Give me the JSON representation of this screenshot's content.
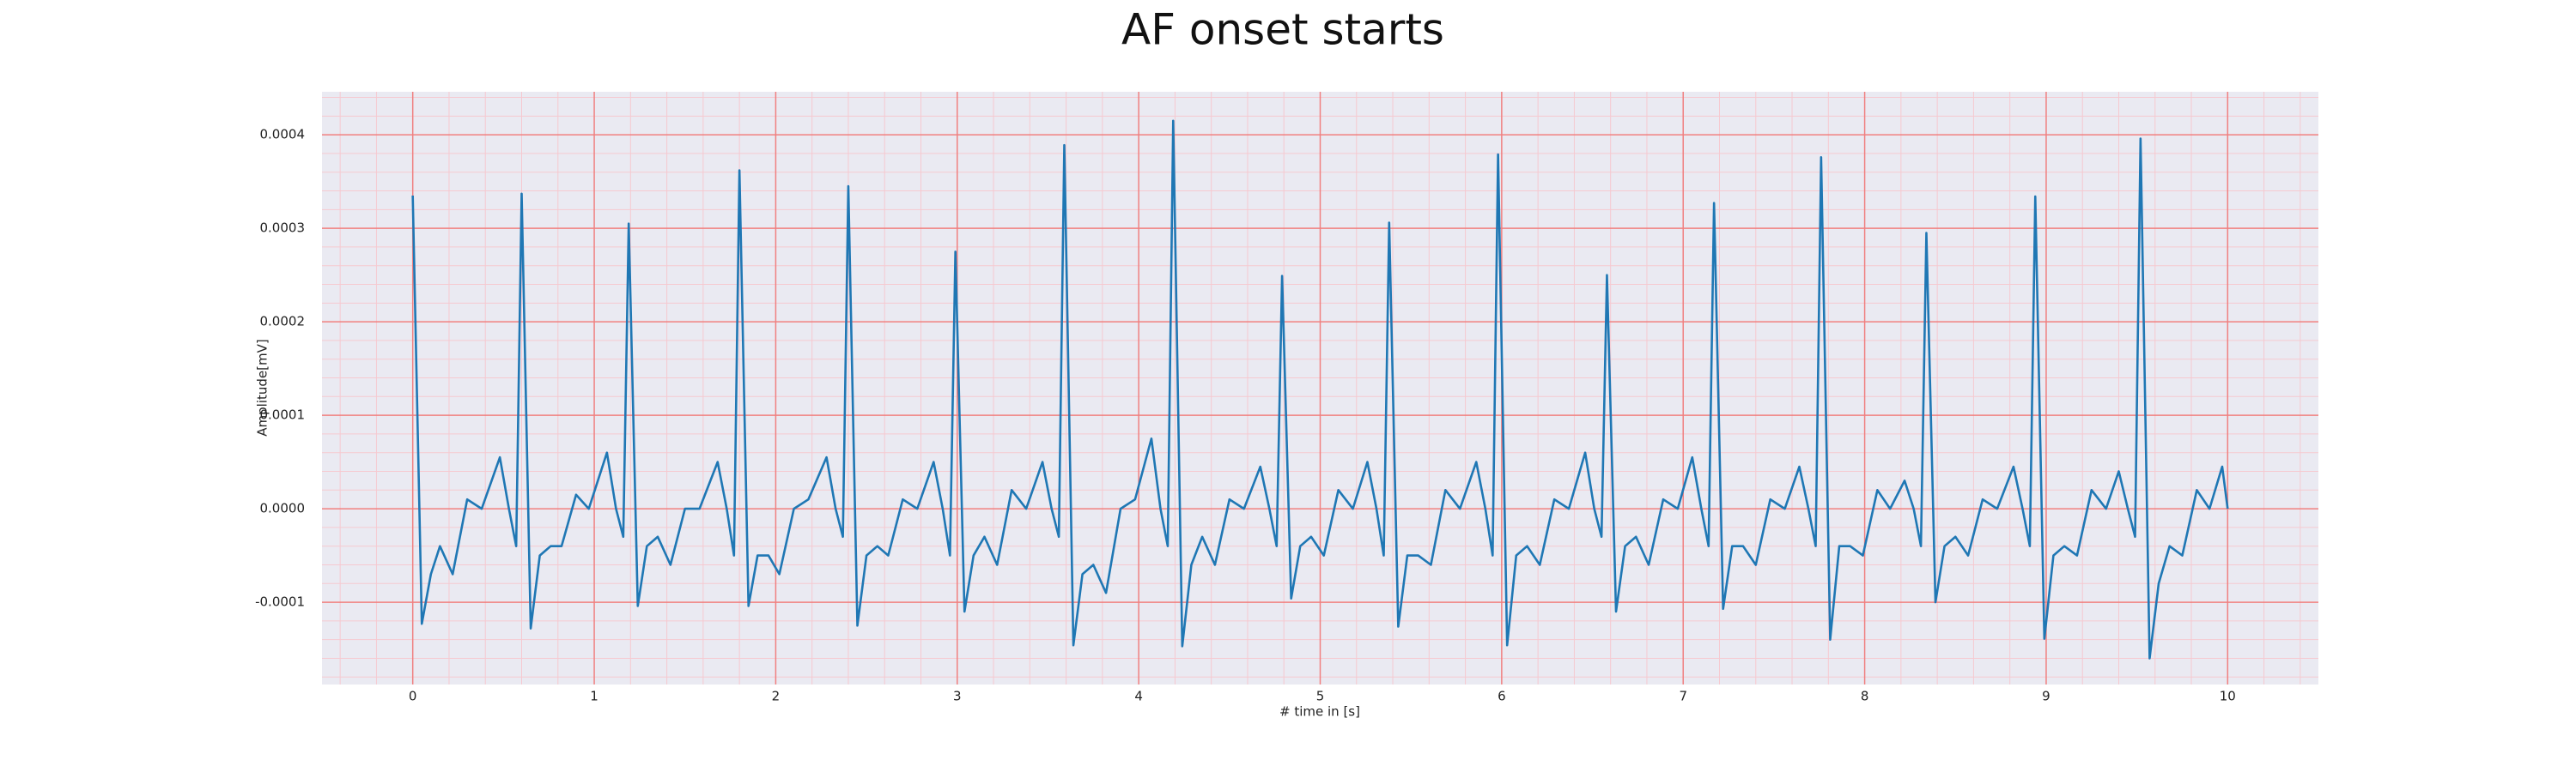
{
  "chart_data": {
    "type": "line",
    "title": "AF onset starts",
    "x_label": "# time in [s]",
    "y_label": "Amplitude[mV]",
    "color": "#1f77b4",
    "grid": true,
    "minor_grid": true,
    "grid_color": "#f08080",
    "minor_grid_color": "#f6c9d0",
    "background": "#eaeaf2",
    "xlim": [
      -0.5,
      10.5
    ],
    "ylim": [
      -0.000188,
      0.000446
    ],
    "xticks": [
      0,
      1,
      2,
      3,
      4,
      5,
      6,
      7,
      8,
      9,
      10
    ],
    "yticks": [
      -0.0001,
      {
        "value": 0,
        "label": "0.0000"
      },
      0.0001,
      0.0002,
      0.0003,
      0.0004
    ],
    "x": [
      0.0,
      0.05,
      0.1,
      0.15,
      0.22,
      0.3,
      0.38,
      0.48,
      0.53,
      0.57,
      0.6,
      0.65,
      0.7,
      0.76,
      0.82,
      0.9,
      0.97,
      1.07,
      1.12,
      1.16,
      1.19,
      1.24,
      1.29,
      1.35,
      1.42,
      1.5,
      1.58,
      1.68,
      1.73,
      1.77,
      1.8,
      1.85,
      1.9,
      1.96,
      2.02,
      2.1,
      2.18,
      2.28,
      2.33,
      2.37,
      2.4,
      2.45,
      2.5,
      2.56,
      2.62,
      2.7,
      2.78,
      2.87,
      2.92,
      2.96,
      2.99,
      3.04,
      3.09,
      3.15,
      3.22,
      3.3,
      3.38,
      3.47,
      3.52,
      3.56,
      3.59,
      3.64,
      3.69,
      3.75,
      3.82,
      3.9,
      3.98,
      4.07,
      4.12,
      4.16,
      4.19,
      4.24,
      4.29,
      4.35,
      4.42,
      4.5,
      4.58,
      4.67,
      4.72,
      4.76,
      4.79,
      4.84,
      4.89,
      4.95,
      5.02,
      5.1,
      5.18,
      5.26,
      5.31,
      5.35,
      5.38,
      5.43,
      5.48,
      5.54,
      5.61,
      5.69,
      5.77,
      5.86,
      5.91,
      5.95,
      5.98,
      6.03,
      6.08,
      6.14,
      6.21,
      6.29,
      6.37,
      6.46,
      6.51,
      6.55,
      6.58,
      6.63,
      6.68,
      6.74,
      6.81,
      6.89,
      6.97,
      7.05,
      7.1,
      7.14,
      7.17,
      7.22,
      7.27,
      7.33,
      7.4,
      7.48,
      7.56,
      7.64,
      7.69,
      7.73,
      7.76,
      7.81,
      7.86,
      7.92,
      7.99,
      8.07,
      8.14,
      8.22,
      8.27,
      8.31,
      8.34,
      8.39,
      8.44,
      8.5,
      8.57,
      8.65,
      8.73,
      8.82,
      8.87,
      8.91,
      8.94,
      8.99,
      9.04,
      9.1,
      9.17,
      9.25,
      9.33,
      9.4,
      9.45,
      9.49,
      9.52,
      9.57,
      9.62,
      9.68,
      9.75,
      9.83,
      9.9,
      9.97,
      10.0
    ],
    "values": [
      0.000335,
      -0.000123,
      -7e-05,
      -4e-05,
      -7e-05,
      1e-05,
      0.0,
      5.5e-05,
      0.0,
      -4e-05,
      0.000337,
      -0.000128,
      -5e-05,
      -4e-05,
      -4e-05,
      1.5e-05,
      0.0,
      6e-05,
      0.0,
      -3e-05,
      0.000305,
      -0.000104,
      -4e-05,
      -3e-05,
      -6e-05,
      0.0,
      0.0,
      5e-05,
      0.0,
      -5e-05,
      0.000362,
      -0.000104,
      -5e-05,
      -5e-05,
      -7e-05,
      0.0,
      1e-05,
      5.5e-05,
      0.0,
      -3e-05,
      0.000345,
      -0.000125,
      -5e-05,
      -4e-05,
      -5e-05,
      1e-05,
      0.0,
      5e-05,
      0.0,
      -5e-05,
      0.000275,
      -0.00011,
      -5e-05,
      -3e-05,
      -6e-05,
      2e-05,
      0.0,
      5e-05,
      0.0,
      -3e-05,
      0.000389,
      -0.000146,
      -7e-05,
      -6e-05,
      -9e-05,
      0.0,
      1e-05,
      7.5e-05,
      0.0,
      -4e-05,
      0.000415,
      -0.000147,
      -6e-05,
      -3e-05,
      -6e-05,
      1e-05,
      0.0,
      4.5e-05,
      0.0,
      -4e-05,
      0.000249,
      -9.6e-05,
      -4e-05,
      -3e-05,
      -5e-05,
      2e-05,
      0.0,
      5e-05,
      0.0,
      -5e-05,
      0.000306,
      -0.000126,
      -5e-05,
      -5e-05,
      -6e-05,
      2e-05,
      0.0,
      5e-05,
      0.0,
      -5e-05,
      0.000379,
      -0.000146,
      -5e-05,
      -4e-05,
      -6e-05,
      1e-05,
      0.0,
      6e-05,
      0.0,
      -3e-05,
      0.00025,
      -0.00011,
      -4e-05,
      -3e-05,
      -6e-05,
      1e-05,
      0.0,
      5.5e-05,
      0.0,
      -4e-05,
      0.000327,
      -0.000107,
      -4e-05,
      -4e-05,
      -6e-05,
      1e-05,
      0.0,
      4.5e-05,
      0.0,
      -4e-05,
      0.000376,
      -0.00014,
      -4e-05,
      -4e-05,
      -5e-05,
      2e-05,
      0.0,
      3e-05,
      0.0,
      -4e-05,
      0.000295,
      -0.0001,
      -4e-05,
      -3e-05,
      -5e-05,
      1e-05,
      0.0,
      4.5e-05,
      0.0,
      -4e-05,
      0.000334,
      -0.000139,
      -5e-05,
      -4e-05,
      -5e-05,
      2e-05,
      0.0,
      4e-05,
      0.0,
      -3e-05,
      0.000396,
      -0.00016,
      -8e-05,
      -4e-05,
      -5e-05,
      2e-05,
      0.0,
      4.5e-05,
      0.0
    ]
  }
}
